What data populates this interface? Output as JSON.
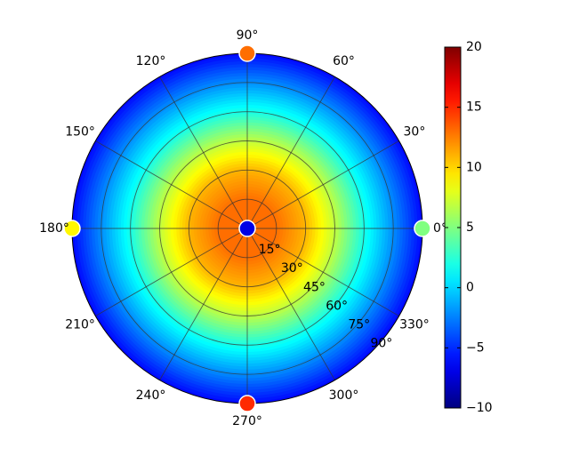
{
  "chart_data": {
    "type": "heatmap",
    "projection": "polar",
    "title": "",
    "grid": true,
    "angle_ticks": [
      0,
      30,
      60,
      90,
      120,
      150,
      180,
      210,
      240,
      270,
      300,
      330
    ],
    "angle_tick_labels": [
      "0°",
      "30°",
      "60°",
      "90°",
      "120°",
      "150°",
      "180°",
      "210°",
      "240°",
      "270°",
      "300°",
      "330°"
    ],
    "radial_ticks": [
      15,
      30,
      45,
      60,
      75,
      90
    ],
    "radial_tick_labels": [
      "15°",
      "30°",
      "45°",
      "60°",
      "75°",
      "90°"
    ],
    "radial_range": [
      0,
      90
    ],
    "colorbar": {
      "range": [
        -10,
        20
      ],
      "ticks": [
        -10,
        -5,
        0,
        5,
        10,
        15,
        20
      ],
      "tick_labels": [
        "−10",
        "−5",
        "0",
        "5",
        "10",
        "15",
        "20"
      ],
      "colormap": "jet"
    },
    "field_profile": [
      {
        "r": 0,
        "value": 13
      },
      {
        "r": 15,
        "value": 13
      },
      {
        "r": 30,
        "value": 11
      },
      {
        "r": 45,
        "value": 7
      },
      {
        "r": 60,
        "value": 2
      },
      {
        "r": 75,
        "value": -2
      },
      {
        "r": 90,
        "value": -6
      }
    ],
    "markers": [
      {
        "angle": 0,
        "r": 0,
        "value": -7
      },
      {
        "angle": 0,
        "r": 90,
        "value": 5
      },
      {
        "angle": 90,
        "r": 90,
        "value": 13
      },
      {
        "angle": 180,
        "r": 90,
        "value": 9
      },
      {
        "angle": 270,
        "r": 90,
        "value": 15
      }
    ]
  }
}
